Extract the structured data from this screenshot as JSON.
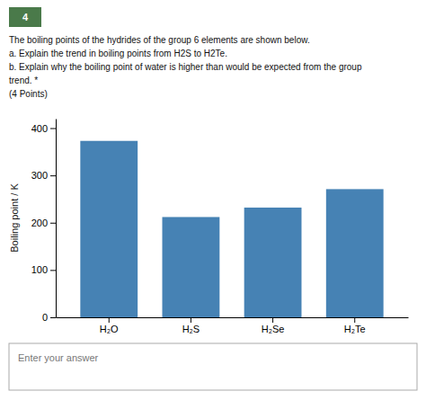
{
  "chart_data": {
    "type": "bar",
    "annotations": [
      "4",
      "The boiling points of the hydrides of the group 6 elements are shown below.",
      "a. Explain the trend in boiling points from H2S to H2Te.",
      "b. Explain why the boiling point of water is higher than would be expected from the group",
      "trend. *",
      "(4 Points)",
      "Enter your answer"
    ],
    "categories": [
      "H₂O",
      "H₂S",
      "H₂Se",
      "H₂Te"
    ],
    "values": [
      373,
      212,
      232,
      271
    ],
    "ylabel": "Boiling point / K",
    "ylim": [
      0,
      420
    ],
    "yticks": [
      0,
      100,
      200,
      300,
      400
    ],
    "grid": false
  }
}
